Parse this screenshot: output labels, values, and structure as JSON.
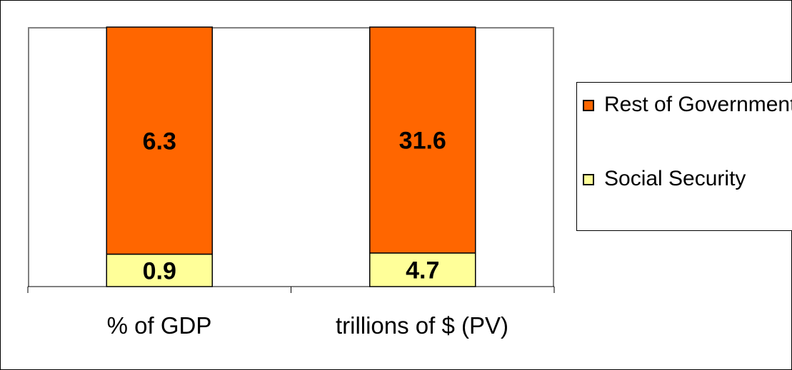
{
  "chart_data": {
    "type": "bar",
    "stacked": true,
    "categories": [
      "% of GDP",
      "trillions of $ (PV)"
    ],
    "series": [
      {
        "name": "Social Security",
        "values": [
          0.9,
          4.7
        ],
        "color": "#FFFF99"
      },
      {
        "name": "Rest of Government",
        "values": [
          6.3,
          31.6
        ],
        "color": "#FF6600"
      }
    ],
    "legend_order": [
      "Rest of Government",
      "Social Security"
    ],
    "legend_position": "right",
    "grid": false,
    "normalized_per_category": true,
    "y_axis_visible": false
  }
}
